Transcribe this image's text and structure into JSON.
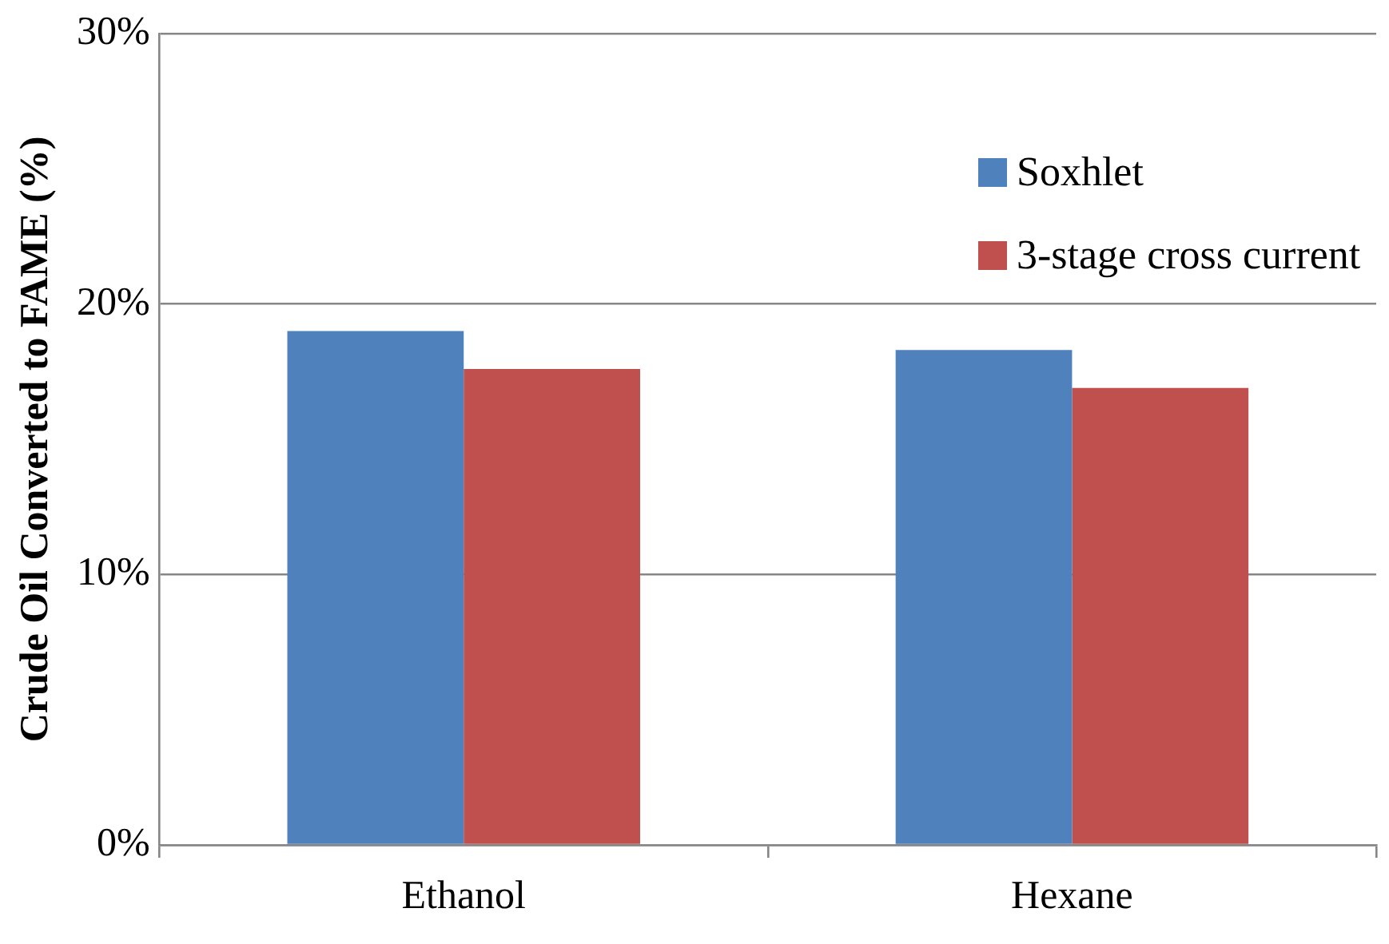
{
  "chart_data": {
    "type": "bar",
    "ylabel": "Crude Oil Converted to FAME (%)",
    "categories": [
      "Ethanol",
      "Hexane"
    ],
    "series": [
      {
        "name": "Soxhlet",
        "color": "#4f81bd",
        "values": [
          19.0,
          18.3
        ]
      },
      {
        "name": "3-stage cross current",
        "color": "#c0504d",
        "values": [
          17.6,
          16.9
        ]
      }
    ],
    "ylim": [
      0,
      30
    ],
    "yticks": [
      {
        "value": 0,
        "label": "0%"
      },
      {
        "value": 10,
        "label": "10%"
      },
      {
        "value": 20,
        "label": "20%"
      },
      {
        "value": 30,
        "label": "30%"
      }
    ],
    "grid": "y",
    "legend": "top right"
  }
}
